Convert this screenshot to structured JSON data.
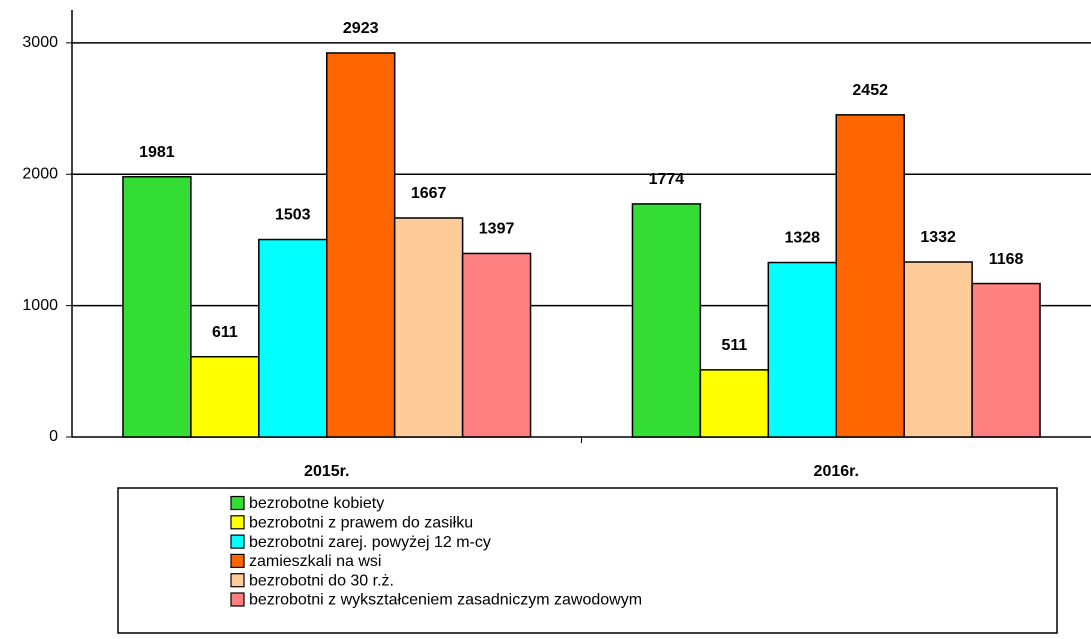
{
  "chart_data": {
    "type": "bar",
    "categories": [
      "2015r.",
      "2016r."
    ],
    "series": [
      {
        "name": "bezrobotne kobiety",
        "color": "#33dd33",
        "values": [
          1981,
          1774
        ]
      },
      {
        "name": "bezrobotni z prawem do zasiłku",
        "color": "#ffff00",
        "values": [
          611,
          511
        ]
      },
      {
        "name": "bezrobotni zarej. powyżej 12 m-cy",
        "color": "#00ffff",
        "values": [
          1503,
          1328
        ]
      },
      {
        "name": "zamieszkali na wsi",
        "color": "#ff6600",
        "values": [
          2923,
          2452
        ]
      },
      {
        "name": "bezrobotni do 30 r.ż.",
        "color": "#ffcc99",
        "values": [
          1667,
          1332
        ]
      },
      {
        "name": "bezrobotni z wykształceniem zasadniczym zawodowym",
        "color": "#ff8080",
        "values": [
          1397,
          1168
        ]
      }
    ],
    "ylim": [
      0,
      3250
    ],
    "yticks": [
      0,
      1000,
      2000,
      3000
    ],
    "grid": true,
    "legend": "bottom"
  }
}
